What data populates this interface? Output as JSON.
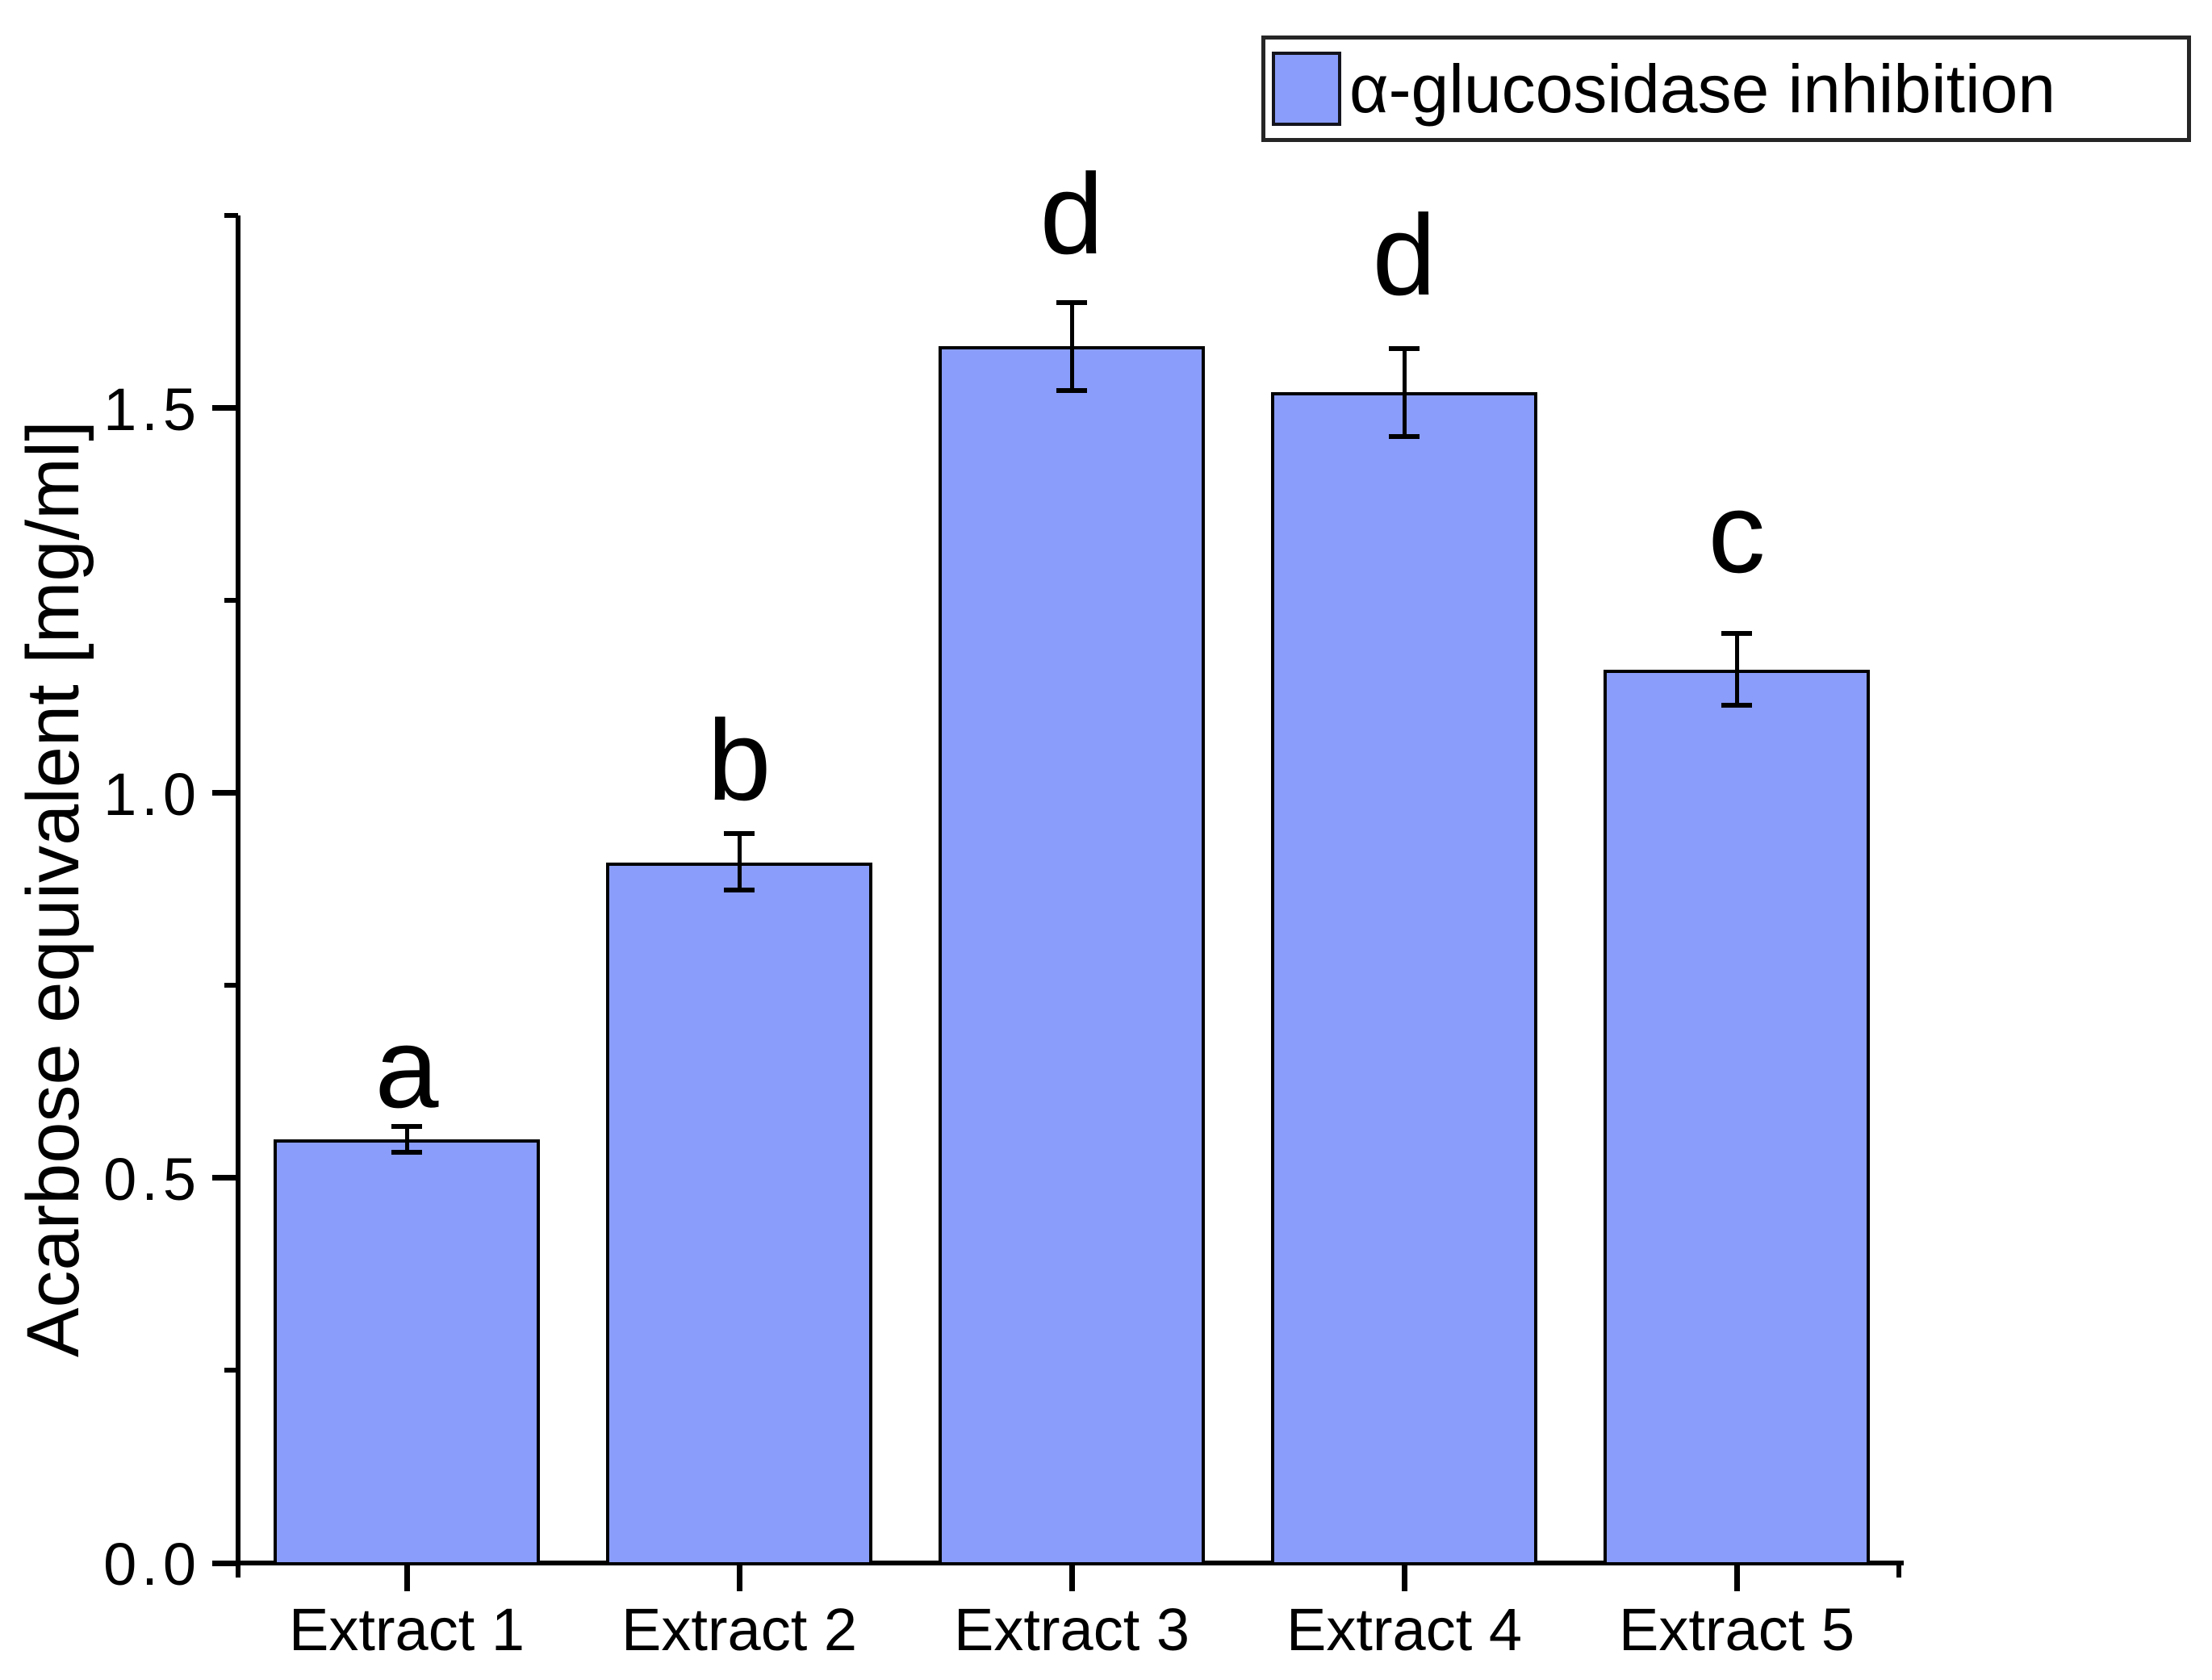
{
  "figure": {
    "background": "#ffffff",
    "colors": {
      "bar_fill": "#8A9DFB",
      "bar_border": "#000000",
      "axis": "#000000",
      "text": "#000000"
    }
  },
  "chart_data": {
    "type": "bar",
    "title": "",
    "xlabel": "",
    "ylabel": "Acarbose equivalent [mg/ml]",
    "categories": [
      "Extract 1",
      "Extract 2",
      "Extract 3",
      "Extract 4",
      "Extract 5"
    ],
    "series": [
      {
        "name": "α-glucosidase inhibition",
        "values": [
          0.55,
          0.91,
          1.58,
          1.52,
          1.16
        ],
        "errors": [
          0.02,
          0.04,
          0.06,
          0.06,
          0.05
        ],
        "significance_letters": [
          "a",
          "b",
          "d",
          "d",
          "c"
        ],
        "fill_color": "#8A9DFB",
        "border_color": "#000000"
      }
    ],
    "ylim": [
      0,
      1.75
    ],
    "yticks_major": {
      "values": [
        0,
        0.5,
        1.0,
        1.5
      ],
      "labels": [
        "0.0",
        "0.5",
        "1.0",
        "1.5"
      ]
    },
    "yticks_minor": [
      0.25,
      0.75,
      1.25,
      1.75
    ],
    "grid": false,
    "error_bars": true,
    "legend": {
      "position": "top-right",
      "entries": [
        {
          "label": "α-glucosidase inhibition",
          "swatch_color": "#8A9DFB"
        }
      ]
    }
  }
}
